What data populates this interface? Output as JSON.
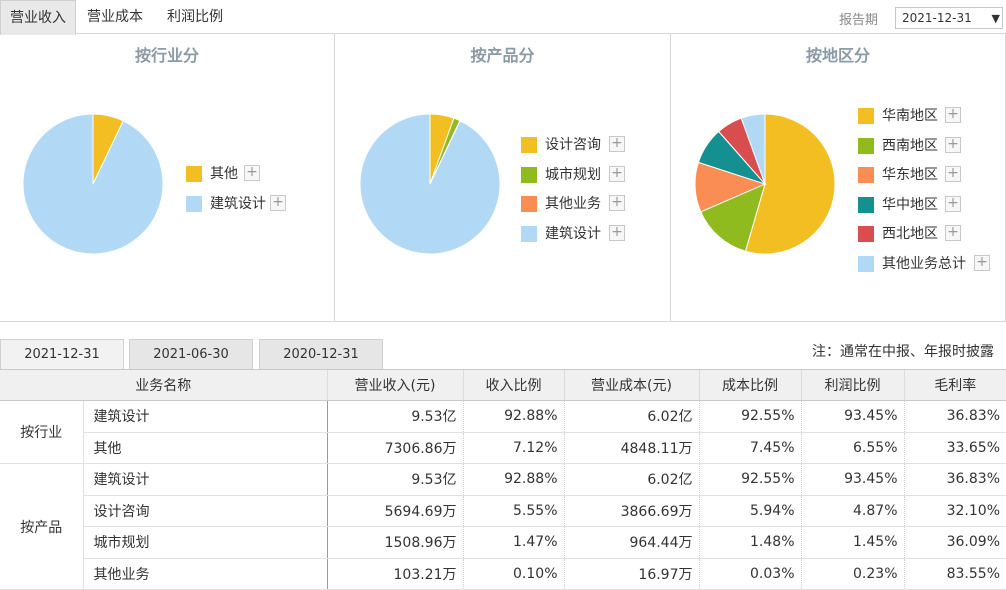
{
  "tabs": [
    "营业收入",
    "营业成本",
    "利润比例"
  ],
  "report_period": {
    "label": "报告期",
    "value": "2021-12-31"
  },
  "panels": [
    {
      "title": "按行业分",
      "slices": [
        {
          "name": "其他",
          "value": 7.12,
          "color": "#f3be22"
        },
        {
          "name": "建筑设计",
          "value": 92.88,
          "color": "#b1d9f6"
        }
      ]
    },
    {
      "title": "按产品分",
      "slices": [
        {
          "name": "设计咨询",
          "value": 5.55,
          "color": "#f3be22"
        },
        {
          "name": "城市规划",
          "value": 1.47,
          "color": "#8fbb1e"
        },
        {
          "name": "其他业务",
          "value": 0.1,
          "color": "#fa8d53"
        },
        {
          "name": "建筑设计",
          "value": 92.88,
          "color": "#b1d9f6"
        }
      ]
    },
    {
      "title": "按地区分",
      "slices": [
        {
          "name": "华南地区",
          "value": 54.5,
          "color": "#f3be22"
        },
        {
          "name": "西南地区",
          "value": 14.0,
          "color": "#8fbb1e"
        },
        {
          "name": "华东地区",
          "value": 11.5,
          "color": "#fa8d53"
        },
        {
          "name": "华中地区",
          "value": 8.5,
          "color": "#149090"
        },
        {
          "name": "西北地区",
          "value": 6.0,
          "color": "#d84d4d"
        },
        {
          "name": "其他业务总计",
          "value": 5.5,
          "color": "#b1d9f6"
        }
      ]
    }
  ],
  "date_tabs": [
    "2021-12-31",
    "2021-06-30",
    "2020-12-31"
  ],
  "note": "注：通常在中报、年报时披露",
  "table": {
    "headers": [
      "业务名称",
      "营业收入(元)",
      "收入比例",
      "营业成本(元)",
      "成本比例",
      "利润比例",
      "毛利率"
    ],
    "groups": [
      {
        "name": "按行业",
        "rows": [
          [
            "建筑设计",
            "9.53亿",
            "92.88%",
            "6.02亿",
            "92.55%",
            "93.45%",
            "36.83%"
          ],
          [
            "其他",
            "7306.86万",
            "7.12%",
            "4848.11万",
            "7.45%",
            "6.55%",
            "33.65%"
          ]
        ]
      },
      {
        "name": "按产品",
        "rows": [
          [
            "建筑设计",
            "9.53亿",
            "92.88%",
            "6.02亿",
            "92.55%",
            "93.45%",
            "36.83%"
          ],
          [
            "设计咨询",
            "5694.69万",
            "5.55%",
            "3866.69万",
            "5.94%",
            "4.87%",
            "32.10%"
          ],
          [
            "城市规划",
            "1508.96万",
            "1.47%",
            "964.44万",
            "1.48%",
            "1.45%",
            "36.09%"
          ],
          [
            "其他业务",
            "103.21万",
            "0.10%",
            "16.97万",
            "0.03%",
            "0.23%",
            "83.55%"
          ]
        ]
      }
    ]
  }
}
